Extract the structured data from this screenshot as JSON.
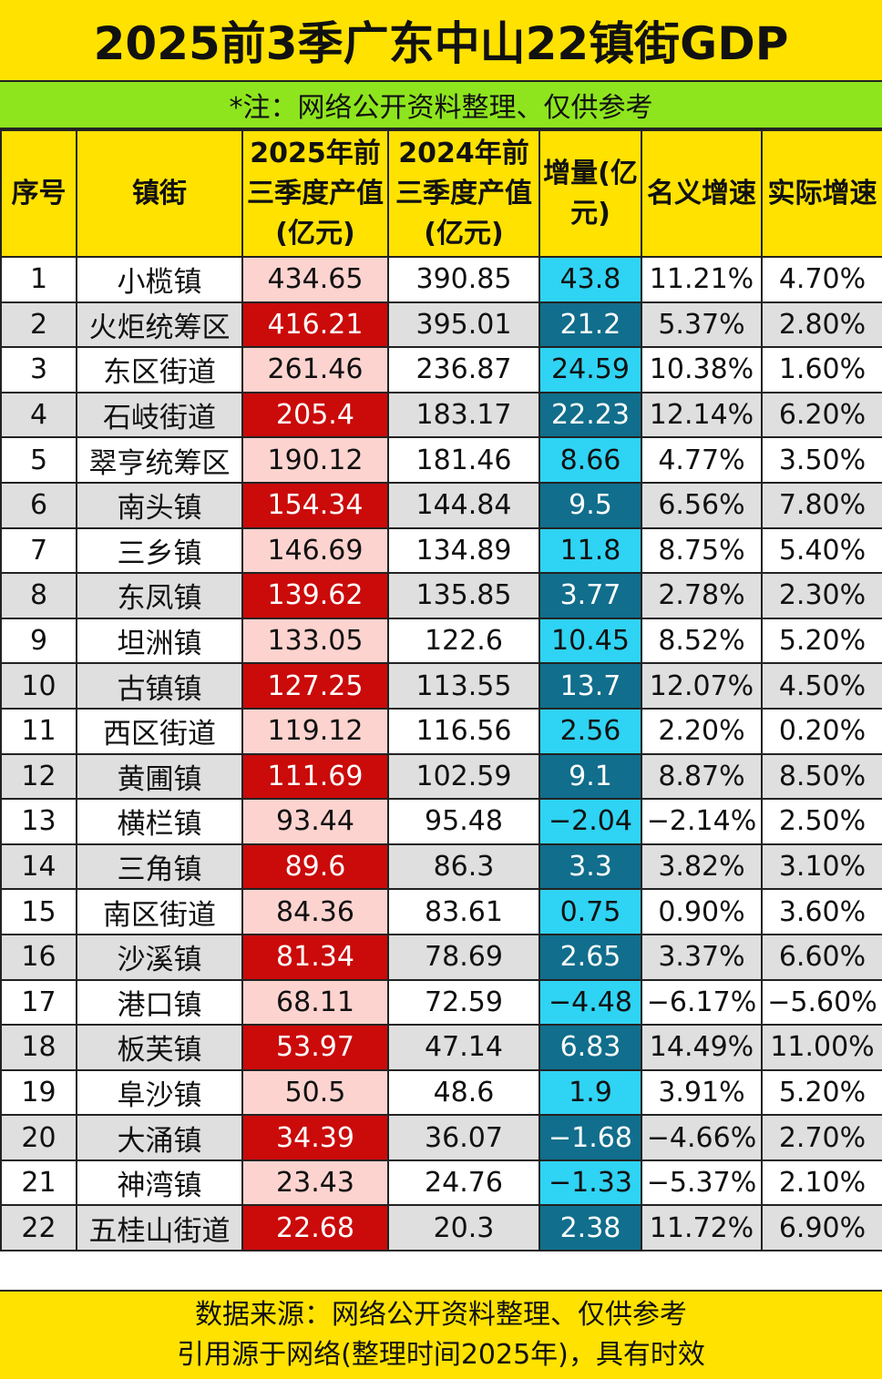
{
  "title": "2025前3季广东中山22镇街GDP",
  "note": "*注：网络公开资料整理、仅供参考",
  "headers": {
    "no": "序号",
    "name": "镇街",
    "y2025": "2025年前三季度产值(亿元)",
    "y2024": "2024年前三季度产值(亿元)",
    "inc": "增量(亿元)",
    "nominal": "名义增速",
    "real": "实际增速"
  },
  "rows": [
    {
      "no": "1",
      "name": "小榄镇",
      "y2025": "434.65",
      "y2024": "390.85",
      "inc": "43.8",
      "nominal": "11.21%",
      "real": "4.70%"
    },
    {
      "no": "2",
      "name": "火炬统筹区",
      "y2025": "416.21",
      "y2024": "395.01",
      "inc": "21.2",
      "nominal": "5.37%",
      "real": "2.80%"
    },
    {
      "no": "3",
      "name": "东区街道",
      "y2025": "261.46",
      "y2024": "236.87",
      "inc": "24.59",
      "nominal": "10.38%",
      "real": "1.60%"
    },
    {
      "no": "4",
      "name": "石岐街道",
      "y2025": "205.4",
      "y2024": "183.17",
      "inc": "22.23",
      "nominal": "12.14%",
      "real": "6.20%"
    },
    {
      "no": "5",
      "name": "翠亨统筹区",
      "y2025": "190.12",
      "y2024": "181.46",
      "inc": "8.66",
      "nominal": "4.77%",
      "real": "3.50%"
    },
    {
      "no": "6",
      "name": "南头镇",
      "y2025": "154.34",
      "y2024": "144.84",
      "inc": "9.5",
      "nominal": "6.56%",
      "real": "7.80%"
    },
    {
      "no": "7",
      "name": "三乡镇",
      "y2025": "146.69",
      "y2024": "134.89",
      "inc": "11.8",
      "nominal": "8.75%",
      "real": "5.40%"
    },
    {
      "no": "8",
      "name": "东凤镇",
      "y2025": "139.62",
      "y2024": "135.85",
      "inc": "3.77",
      "nominal": "2.78%",
      "real": "2.30%"
    },
    {
      "no": "9",
      "name": "坦洲镇",
      "y2025": "133.05",
      "y2024": "122.6",
      "inc": "10.45",
      "nominal": "8.52%",
      "real": "5.20%"
    },
    {
      "no": "10",
      "name": "古镇镇",
      "y2025": "127.25",
      "y2024": "113.55",
      "inc": "13.7",
      "nominal": "12.07%",
      "real": "4.50%"
    },
    {
      "no": "11",
      "name": "西区街道",
      "y2025": "119.12",
      "y2024": "116.56",
      "inc": "2.56",
      "nominal": "2.20%",
      "real": "0.20%"
    },
    {
      "no": "12",
      "name": "黄圃镇",
      "y2025": "111.69",
      "y2024": "102.59",
      "inc": "9.1",
      "nominal": "8.87%",
      "real": "8.50%"
    },
    {
      "no": "13",
      "name": "横栏镇",
      "y2025": "93.44",
      "y2024": "95.48",
      "inc": "−2.04",
      "nominal": "−2.14%",
      "real": "2.50%"
    },
    {
      "no": "14",
      "name": "三角镇",
      "y2025": "89.6",
      "y2024": "86.3",
      "inc": "3.3",
      "nominal": "3.82%",
      "real": "3.10%"
    },
    {
      "no": "15",
      "name": "南区街道",
      "y2025": "84.36",
      "y2024": "83.61",
      "inc": "0.75",
      "nominal": "0.90%",
      "real": "3.60%"
    },
    {
      "no": "16",
      "name": "沙溪镇",
      "y2025": "81.34",
      "y2024": "78.69",
      "inc": "2.65",
      "nominal": "3.37%",
      "real": "6.60%"
    },
    {
      "no": "17",
      "name": "港口镇",
      "y2025": "68.11",
      "y2024": "72.59",
      "inc": "−4.48",
      "nominal": "−6.17%",
      "real": "−5.60%"
    },
    {
      "no": "18",
      "name": "板芙镇",
      "y2025": "53.97",
      "y2024": "47.14",
      "inc": "6.83",
      "nominal": "14.49%",
      "real": "11.00%"
    },
    {
      "no": "19",
      "name": "阜沙镇",
      "y2025": "50.5",
      "y2024": "48.6",
      "inc": "1.9",
      "nominal": "3.91%",
      "real": "5.20%"
    },
    {
      "no": "20",
      "name": "大涌镇",
      "y2025": "34.39",
      "y2024": "36.07",
      "inc": "−1.68",
      "nominal": "−4.66%",
      "real": "2.70%"
    },
    {
      "no": "21",
      "name": "神湾镇",
      "y2025": "23.43",
      "y2024": "24.76",
      "inc": "−1.33",
      "nominal": "−5.37%",
      "real": "2.10%"
    },
    {
      "no": "22",
      "name": "五桂山街道",
      "y2025": "22.68",
      "y2024": "20.3",
      "inc": "2.38",
      "nominal": "11.72%",
      "real": "6.90%"
    }
  ],
  "footer": {
    "line1": "数据来源：网络公开资料整理、仅供参考",
    "line2": "引用源于网络(整理时间2025年)，具有时效"
  },
  "colors": {
    "header_bg": "#FFE200",
    "note_bg": "#8EE51E",
    "current_light": "#FDD3CF",
    "current_dark": "#CB0A0A",
    "increase_light": "#2FD3F3",
    "increase_dark": "#116E8C",
    "stripe_gray": "#DFDFDF"
  }
}
